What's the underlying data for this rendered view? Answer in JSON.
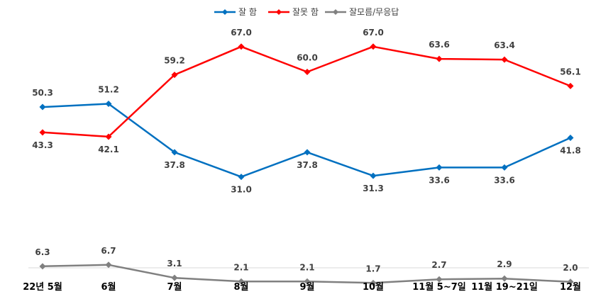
{
  "chart_data": {
    "type": "line",
    "categories": [
      "22년 5월",
      "6월",
      "7월",
      "8월",
      "9월",
      "10월",
      "11월 5~7일",
      "11월 19~21일",
      "12월"
    ],
    "series": [
      {
        "name": "잘 함",
        "color": "#0070C0",
        "marker": "diamond",
        "values": [
          50.3,
          51.2,
          37.8,
          31.0,
          37.8,
          31.3,
          33.6,
          33.6,
          41.8
        ]
      },
      {
        "name": "잘못 함",
        "color": "#FF0000",
        "marker": "diamond",
        "values": [
          43.3,
          42.1,
          59.2,
          67.0,
          60.0,
          67.0,
          63.6,
          63.4,
          56.1
        ]
      },
      {
        "name": "잘모름/무응답",
        "color": "#808080",
        "marker": "diamond",
        "values": [
          6.3,
          6.7,
          3.1,
          2.1,
          2.1,
          1.7,
          2.7,
          2.9,
          2.0
        ]
      }
    ],
    "value_labels": [
      [
        "50.3",
        "51.2",
        "37.8",
        "31.0",
        "37.8",
        "31.3",
        "33.6",
        "33.6",
        "41.8"
      ],
      [
        "43.3",
        "42.1",
        "59.2",
        "67.0",
        "60.0",
        "67.0",
        "63.6",
        "63.4",
        "56.1"
      ],
      [
        "6.3",
        "6.7",
        "3.1",
        "2.1",
        "2.1",
        "1.7",
        "2.7",
        "2.9",
        "2.0"
      ]
    ],
    "ylim": [
      0,
      74
    ],
    "legend_position": "top-center",
    "grid": false
  }
}
